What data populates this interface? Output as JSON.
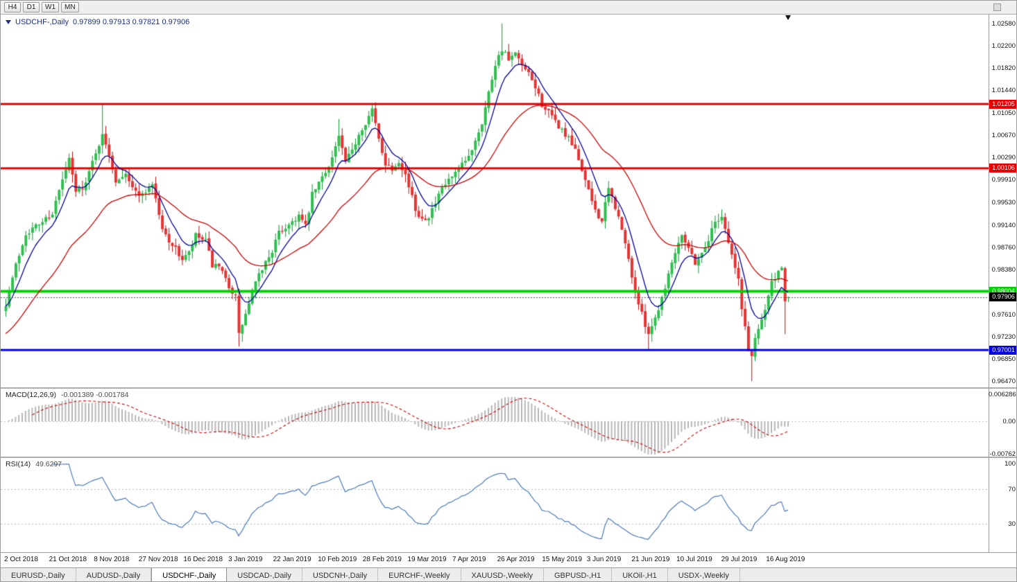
{
  "toolbar": {
    "timeframes": [
      "H4",
      "D1",
      "W1",
      "MN"
    ]
  },
  "main_chart": {
    "header": {
      "symbol": "USDCHF-,Daily",
      "ohlc": "0.97899 0.97913 0.97821 0.97906"
    },
    "price_axis": {
      "top_price": 1.0258,
      "bottom_price": 0.9647,
      "labels": [
        "1.02580",
        "1.02200",
        "1.01820",
        "1.01440",
        "1.01050",
        "1.00670",
        "1.00290",
        "0.99910",
        "0.99530",
        "0.99140",
        "0.98760",
        "0.98380",
        "0.97990",
        "0.97610",
        "0.97230",
        "0.96850",
        "0.96470"
      ]
    },
    "levels": [
      {
        "label": "1.01205",
        "price": 1.01205,
        "color": "#e60000",
        "thickness": 3
      },
      {
        "label": "1.00106",
        "price": 1.00106,
        "color": "#e60000",
        "thickness": 3
      },
      {
        "label": "0.98004",
        "price": 0.98004,
        "color": "#00d400",
        "thickness": 4
      },
      {
        "label": "0.97001",
        "price": 0.97001,
        "color": "#0000e6",
        "thickness": 3
      }
    ],
    "current_price": {
      "label": "0.97906",
      "price": 0.97906,
      "color": "#000000"
    }
  },
  "chart_data": {
    "type": "candlestick",
    "symbol": "USDCHF",
    "timeframe": "Daily",
    "x_range": [
      "2 Oct 2018",
      "16 Aug 2019"
    ],
    "y_range": [
      0.9647,
      1.0258
    ],
    "candle_count": 236,
    "last_candle": {
      "open": 0.97899,
      "high": 0.97913,
      "low": 0.97821,
      "close": 0.97906
    },
    "price_path_anchors": [
      [
        0,
        0.978
      ],
      [
        3,
        0.9845
      ],
      [
        6,
        0.99
      ],
      [
        10,
        0.9915
      ],
      [
        14,
        0.9935
      ],
      [
        17,
        0.999
      ],
      [
        19,
        1.0025
      ],
      [
        21,
        0.997
      ],
      [
        24,
        0.9985
      ],
      [
        27,
        1.004
      ],
      [
        29,
        1.0065
      ],
      [
        31,
        1.0035
      ],
      [
        33,
        0.999
      ],
      [
        36,
        1.0005
      ],
      [
        38,
        0.9975
      ],
      [
        41,
        0.9965
      ],
      [
        44,
        0.9985
      ],
      [
        47,
        0.9905
      ],
      [
        50,
        0.988
      ],
      [
        53,
        0.9855
      ],
      [
        55,
        0.9865
      ],
      [
        57,
        0.9895
      ],
      [
        60,
        0.9885
      ],
      [
        62,
        0.9845
      ],
      [
        64,
        0.984
      ],
      [
        66,
        0.982
      ],
      [
        68,
        0.98
      ],
      [
        69,
        0.979
      ],
      [
        70,
        0.9725
      ],
      [
        71,
        0.9745
      ],
      [
        72,
        0.976
      ],
      [
        74,
        0.98
      ],
      [
        77,
        0.984
      ],
      [
        80,
        0.987
      ],
      [
        82,
        0.99
      ],
      [
        85,
        0.9915
      ],
      [
        88,
        0.993
      ],
      [
        90,
        0.991
      ],
      [
        92,
        0.9965
      ],
      [
        94,
        0.9985
      ],
      [
        96,
        1.0005
      ],
      [
        98,
        1.003
      ],
      [
        100,
        1.0065
      ],
      [
        102,
        1.002
      ],
      [
        104,
        1.004
      ],
      [
        106,
        1.007
      ],
      [
        108,
        1.009
      ],
      [
        110,
        1.011
      ],
      [
        112,
        1.006
      ],
      [
        114,
        1.002
      ],
      [
        116,
        1.001
      ],
      [
        118,
        1.0025
      ],
      [
        120,
        1.0
      ],
      [
        123,
        0.994
      ],
      [
        125,
        0.9925
      ],
      [
        127,
        0.993
      ],
      [
        129,
        0.995
      ],
      [
        131,
        0.9975
      ],
      [
        133,
        0.999
      ],
      [
        135,
        1.0
      ],
      [
        137,
        1.0015
      ],
      [
        139,
        1.003
      ],
      [
        141,
        1.006
      ],
      [
        143,
        1.009
      ],
      [
        145,
        1.014
      ],
      [
        147,
        1.019
      ],
      [
        149,
        1.0215
      ],
      [
        151,
        1.0195
      ],
      [
        153,
        1.0205
      ],
      [
        155,
        1.0185
      ],
      [
        157,
        1.017
      ],
      [
        159,
        1.015
      ],
      [
        161,
        1.012
      ],
      [
        163,
        1.0105
      ],
      [
        165,
        1.009
      ],
      [
        167,
        1.0075
      ],
      [
        169,
        1.006
      ],
      [
        171,
        1.004
      ],
      [
        173,
        1.001
      ],
      [
        175,
        0.997
      ],
      [
        177,
        0.994
      ],
      [
        179,
        0.992
      ],
      [
        181,
        0.9975
      ],
      [
        183,
        0.9945
      ],
      [
        185,
        0.9905
      ],
      [
        187,
        0.9855
      ],
      [
        189,
        0.98
      ],
      [
        191,
        0.976
      ],
      [
        193,
        0.973
      ],
      [
        195,
        0.9755
      ],
      [
        197,
        0.979
      ],
      [
        199,
        0.983
      ],
      [
        201,
        0.987
      ],
      [
        203,
        0.99
      ],
      [
        205,
        0.9875
      ],
      [
        207,
        0.985
      ],
      [
        209,
        0.9865
      ],
      [
        211,
        0.989
      ],
      [
        213,
        0.992
      ],
      [
        215,
        0.993
      ],
      [
        217,
        0.9885
      ],
      [
        219,
        0.984
      ],
      [
        220,
        0.982
      ],
      [
        221,
        0.977
      ],
      [
        222,
        0.974
      ],
      [
        223,
        0.97
      ],
      [
        224,
        0.969
      ],
      [
        225,
        0.972
      ],
      [
        226,
        0.974
      ],
      [
        228,
        0.977
      ],
      [
        230,
        0.9815
      ],
      [
        232,
        0.983
      ],
      [
        233,
        0.9838
      ],
      [
        234,
        0.978
      ],
      [
        235,
        0.97906
      ]
    ],
    "wick_spikes": [
      {
        "i": 29,
        "high": 1.0121
      },
      {
        "i": 100,
        "high": 1.0095
      },
      {
        "i": 110,
        "high": 1.0122
      },
      {
        "i": 149,
        "high": 1.0258
      },
      {
        "i": 70,
        "low": 0.9706
      },
      {
        "i": 193,
        "low": 0.9701
      },
      {
        "i": 224,
        "low": 0.9647
      },
      {
        "i": 234,
        "low": 0.9727
      }
    ],
    "moving_averages": [
      {
        "name": "fast-ma",
        "type": "ema",
        "period": 8,
        "color": "#000099"
      },
      {
        "name": "slow-ma",
        "type": "ema",
        "period": 32,
        "color": "#cc0000",
        "seed": 0.9725
      }
    ],
    "colors": {
      "up": "#2fbf4f",
      "up_border": "#0f8f2f",
      "down": "#e63333",
      "down_border": "#aa1111"
    }
  },
  "macd": {
    "header": {
      "name": "MACD(12,26,9)",
      "values": "-0.001389 -0.001784"
    },
    "params": {
      "fast": 12,
      "slow": 26,
      "signal": 9
    },
    "axis_labels": [
      "0.006286",
      "0.00",
      "-0.00762"
    ],
    "histogram_color": "#b6b6b6",
    "signal_color": "#cc0000"
  },
  "rsi": {
    "header": {
      "name": "RSI(14)",
      "value": "49.6297"
    },
    "period": 14,
    "levels": [
      70,
      30
    ],
    "axis_labels": [
      "100",
      "70",
      "30"
    ],
    "line_color": "#4a79b8"
  },
  "date_axis": {
    "labels": [
      "2 Oct 2018",
      "21 Oct 2018",
      "8 Nov 2018",
      "27 Nov 2018",
      "16 Dec 2018",
      "3 Jan 2019",
      "22 Jan 2019",
      "10 Feb 2019",
      "28 Feb 2019",
      "19 Mar 2019",
      "7 Apr 2019",
      "26 Apr 2019",
      "15 May 2019",
      "3 Jun 2019",
      "21 Jun 2019",
      "10 Jul 2019",
      "29 Jul 2019",
      "16 Aug 2019"
    ]
  },
  "tabs": {
    "active_index": 2,
    "items": [
      "EURUSD-,Daily",
      "AUDUSD-,Daily",
      "USDCHF-,Daily",
      "USDCAD-,Daily",
      "USDCNH-,Daily",
      "EURCHF-,Weekly",
      "XAUUSD-,Weekly",
      "GBPUSD-,H1",
      "UKOil-,H1",
      "USDX-,Weekly"
    ]
  }
}
